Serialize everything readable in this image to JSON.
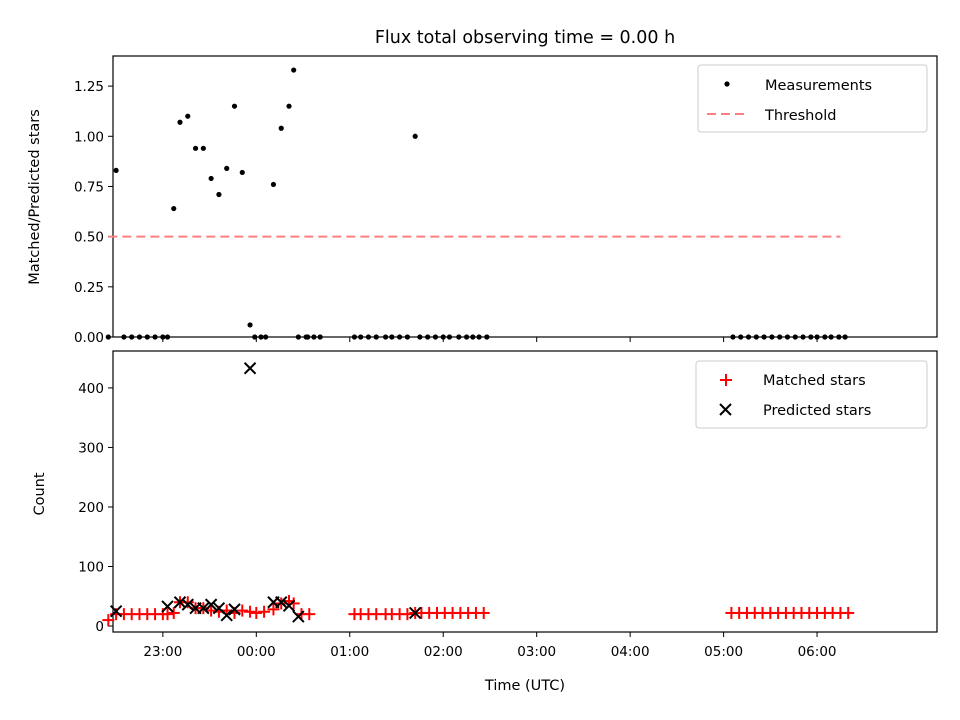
{
  "title": "Flux total observing time = 0.00 h",
  "colors": {
    "measurement": "#000000",
    "threshold": "#ff7f7f",
    "matched": "#ff0000",
    "predicted": "#000000"
  },
  "chart_data": [
    {
      "type": "scatter",
      "xlabel": "",
      "ylabel": "Matched/Predicted stars",
      "xlim": [
        -92,
        437
      ],
      "ylim": [
        0,
        1.4
      ],
      "yticks": [
        0.0,
        0.25,
        0.5,
        0.75,
        1.0,
        1.25
      ],
      "ytick_labels": [
        "0.00",
        "0.25",
        "0.50",
        "0.75",
        "1.00",
        "1.25"
      ],
      "xticks": [
        -60,
        0,
        60,
        120,
        180,
        240,
        300,
        360
      ],
      "legend": {
        "position": "top-right",
        "measurements_label": "Measurements",
        "threshold_label": "Threshold"
      },
      "threshold": {
        "value": 0.5,
        "x_start": -95,
        "x_end": 375
      },
      "series": [
        {
          "name": "Measurements",
          "x": [
            -95,
            -90,
            -85,
            -80,
            -75,
            -70,
            -65,
            -60,
            -57,
            -53,
            -49,
            -44,
            -39,
            -34,
            -29,
            -24,
            -19,
            -14,
            -9,
            -4,
            -1,
            3,
            6,
            11,
            16,
            21,
            24,
            27,
            32,
            33,
            37,
            41,
            63,
            67,
            72,
            77,
            83,
            87,
            92,
            97,
            102,
            105,
            110,
            115,
            120,
            124,
            130,
            135,
            139,
            143,
            148,
            306,
            311,
            316,
            321,
            326,
            331,
            336,
            341,
            346,
            351,
            356,
            360,
            365,
            369,
            374,
            378
          ],
          "y": [
            0,
            0.83,
            0,
            0,
            0,
            0,
            0,
            0,
            0,
            0.64,
            1.07,
            1.1,
            0.94,
            0.94,
            0.79,
            0.71,
            0.84,
            1.15,
            0.82,
            0.06,
            0,
            0,
            0,
            0.76,
            1.04,
            1.15,
            1.33,
            0,
            0,
            0,
            0,
            0,
            0,
            0,
            0,
            0,
            0,
            0,
            0,
            0,
            1.0,
            0,
            0,
            0,
            0,
            0,
            0,
            0,
            0,
            0,
            0,
            0,
            0,
            0,
            0,
            0,
            0,
            0,
            0,
            0,
            0,
            0,
            0,
            0,
            0,
            0,
            0
          ]
        }
      ]
    },
    {
      "type": "scatter",
      "xlabel": "Time (UTC)",
      "ylabel": "Count",
      "xlim": [
        -92,
        437
      ],
      "ylim": [
        -10,
        462
      ],
      "yticks": [
        0,
        100,
        200,
        300,
        400
      ],
      "ytick_labels": [
        "0",
        "100",
        "200",
        "300",
        "400"
      ],
      "xticks": [
        -60,
        0,
        60,
        120,
        180,
        240,
        300,
        360
      ],
      "xtick_labels": [
        "23:00",
        "00:00",
        "01:00",
        "02:00",
        "03:00",
        "04:00",
        "05:00",
        "06:00"
      ],
      "legend": {
        "position": "top-right",
        "matched_label": "Matched stars",
        "predicted_label": "Predicted stars"
      },
      "series": [
        {
          "name": "Matched stars",
          "x": [
            -95,
            -90,
            -85,
            -80,
            -75,
            -70,
            -65,
            -60,
            -57,
            -53,
            -49,
            -44,
            -39,
            -34,
            -29,
            -24,
            -19,
            -14,
            -9,
            -4,
            0,
            5,
            11,
            16,
            21,
            24,
            29,
            34,
            63,
            67,
            72,
            77,
            83,
            87,
            92,
            97,
            102,
            106,
            111,
            116,
            121,
            126,
            131,
            136,
            141,
            146,
            305,
            310,
            315,
            320,
            325,
            330,
            335,
            340,
            345,
            350,
            355,
            360,
            365,
            370,
            375,
            380
          ],
          "y": [
            10,
            20,
            20,
            20,
            20,
            20,
            20,
            20,
            20,
            22,
            40,
            40,
            30,
            30,
            26,
            24,
            26,
            22,
            26,
            24,
            22,
            24,
            28,
            38,
            42,
            38,
            20,
            20,
            20,
            20,
            20,
            20,
            20,
            20,
            20,
            20,
            22,
            22,
            22,
            22,
            22,
            22,
            22,
            22,
            22,
            22,
            22,
            22,
            22,
            22,
            22,
            22,
            22,
            22,
            22,
            22,
            22,
            22,
            22,
            22,
            22,
            22
          ]
        },
        {
          "name": "Predicted stars",
          "x": [
            -90,
            -57,
            -49,
            -44,
            -39,
            -34,
            -29,
            -24,
            -19,
            -14,
            -4,
            11,
            16,
            21,
            27,
            102
          ],
          "y": [
            25,
            33,
            40,
            36,
            30,
            30,
            36,
            30,
            18,
            28,
            433,
            40,
            40,
            34,
            16,
            22
          ]
        }
      ]
    }
  ]
}
